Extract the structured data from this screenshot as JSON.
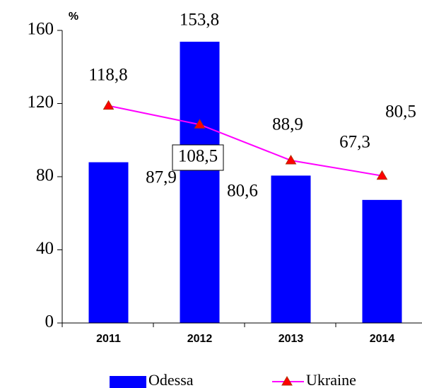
{
  "chart_data": {
    "type": "bar",
    "y_label": "%",
    "categories": [
      "2011",
      "2012",
      "2013",
      "2014"
    ],
    "series": [
      {
        "name": "Odessa",
        "type": "bar",
        "color": "#0000ff",
        "values": [
          87.9,
          153.8,
          80.6,
          67.3
        ],
        "value_labels": [
          "87,9",
          "153,8",
          "80,6",
          "67,3"
        ]
      },
      {
        "name": "Ukraine",
        "type": "line",
        "color": "#ff00ff",
        "marker_color": "#ff0000",
        "values": [
          118.8,
          108.5,
          88.9,
          80.5
        ],
        "value_labels": [
          "118,8",
          "108,5",
          "88,9",
          "80,5"
        ]
      }
    ],
    "ylim": [
      0,
      160
    ],
    "yticks": [
      0,
      40,
      80,
      120,
      160
    ],
    "legend": "bottom"
  }
}
